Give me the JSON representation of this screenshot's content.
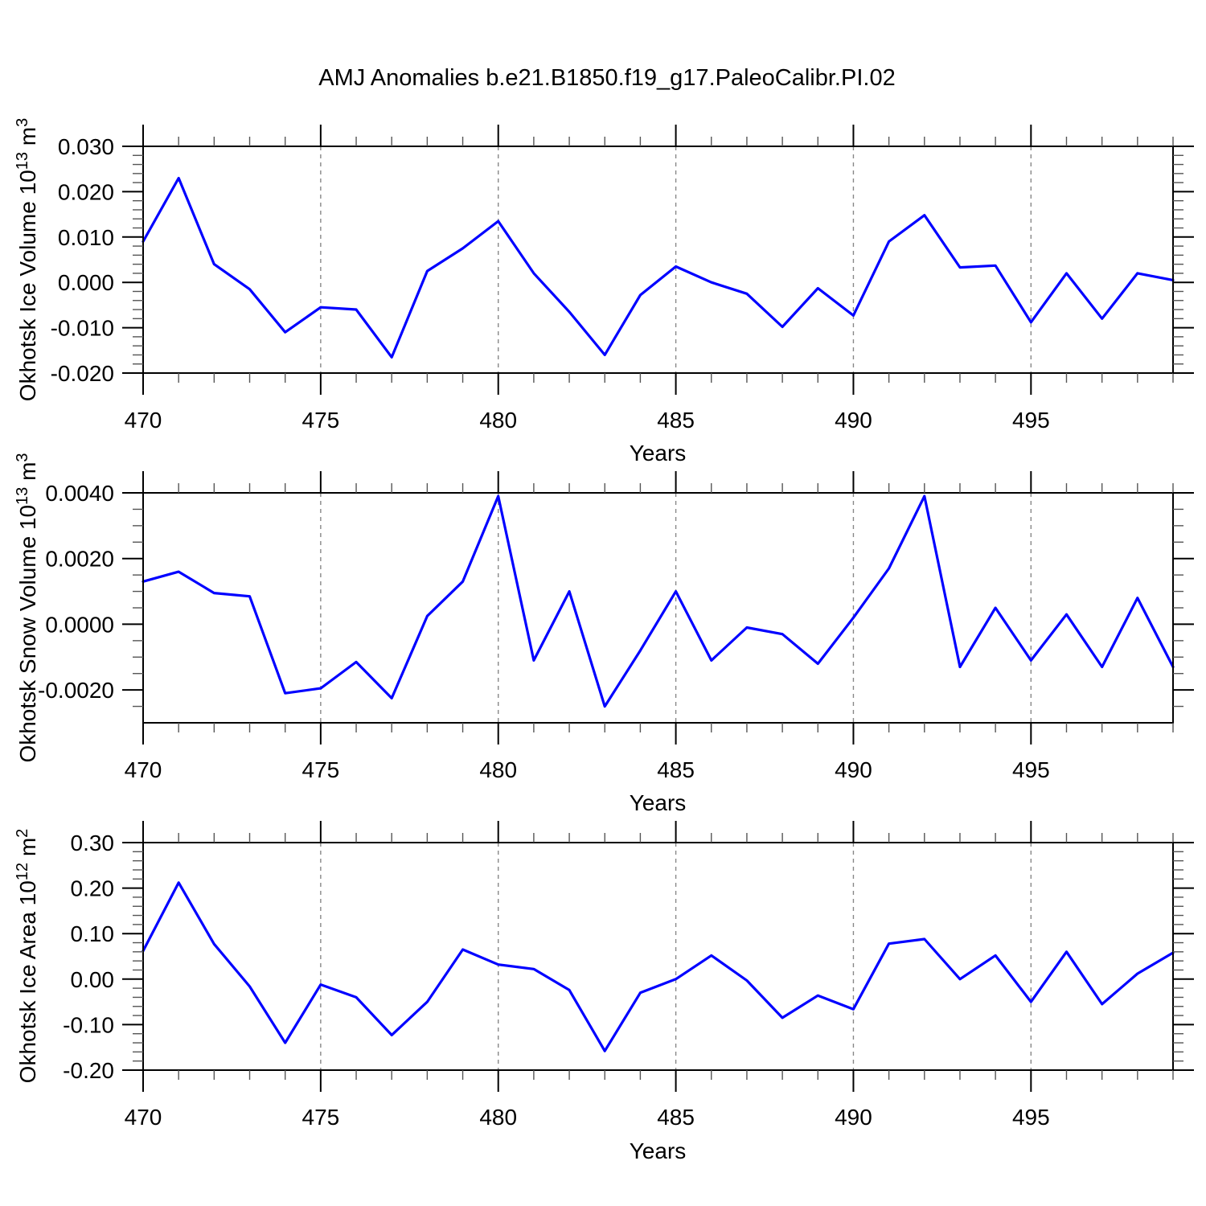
{
  "title": "AMJ Anomalies b.e21.B1850.f19_g17.PaleoCalibr.PI.02",
  "colors": {
    "line": "#0000ff",
    "grid": "#888888",
    "frame": "#000000",
    "minor_tick": "#555555"
  },
  "chart_data": [
    {
      "type": "line",
      "series_name": "Okhotsk Ice Volume anomaly",
      "xlabel": "Years",
      "ylabel": {
        "text": "Okhotsk Ice Volume 10",
        "sup1": "13",
        "unit": " m",
        "sup2": "3"
      },
      "x": [
        470,
        471,
        472,
        473,
        474,
        475,
        476,
        477,
        478,
        479,
        480,
        481,
        482,
        483,
        484,
        485,
        486,
        487,
        488,
        489,
        490,
        491,
        492,
        493,
        494,
        495,
        496,
        497,
        498,
        499
      ],
      "values": [
        0.009,
        0.023,
        0.004,
        -0.0015,
        -0.011,
        -0.0055,
        -0.006,
        -0.0165,
        0.0025,
        0.0075,
        0.0135,
        0.002,
        -0.0065,
        -0.016,
        -0.0028,
        0.0035,
        0.0,
        -0.0025,
        -0.0098,
        -0.0013,
        -0.0073,
        0.009,
        0.0148,
        0.0033,
        0.0037,
        -0.0088,
        0.002,
        -0.008,
        0.002,
        0.0005
      ],
      "xlim": [
        470,
        499
      ],
      "ylim": [
        -0.02,
        0.03
      ],
      "yticks": [
        {
          "v": 0.03,
          "label": "0.030"
        },
        {
          "v": 0.02,
          "label": "0.020"
        },
        {
          "v": 0.01,
          "label": "0.010"
        },
        {
          "v": 0.0,
          "label": "0.000"
        },
        {
          "v": -0.01,
          "label": "-0.010"
        },
        {
          "v": -0.02,
          "label": "-0.020"
        }
      ],
      "y_minor_step": 0.002,
      "xticks": [
        {
          "v": 470,
          "label": "470"
        },
        {
          "v": 475,
          "label": "475"
        },
        {
          "v": 480,
          "label": "480"
        },
        {
          "v": 485,
          "label": "485"
        },
        {
          "v": 490,
          "label": "490"
        },
        {
          "v": 495,
          "label": "495"
        }
      ],
      "x_minor_step": 1,
      "grid_x": [
        475,
        480,
        485,
        490,
        495
      ],
      "line_color": "#0000ff",
      "grid_on": true,
      "legend": "none"
    },
    {
      "type": "line",
      "series_name": "Okhotsk Snow Volume anomaly",
      "xlabel": "Years",
      "ylabel": {
        "text": "Okhotsk Snow Volume 10",
        "sup1": "13",
        "unit": " m",
        "sup2": "3"
      },
      "x": [
        470,
        471,
        472,
        473,
        474,
        475,
        476,
        477,
        478,
        479,
        480,
        481,
        482,
        483,
        484,
        485,
        486,
        487,
        488,
        489,
        490,
        491,
        492,
        493,
        494,
        495,
        496,
        497,
        498,
        499
      ],
      "values": [
        0.0013,
        0.0016,
        0.00095,
        0.00085,
        -0.0021,
        -0.00195,
        -0.00115,
        -0.00225,
        0.00025,
        0.0013,
        0.0039,
        -0.0011,
        0.001,
        -0.0025,
        -0.0008,
        0.001,
        -0.0011,
        -0.0001,
        -0.0003,
        -0.0012,
        0.0002,
        0.0017,
        0.0039,
        -0.0013,
        0.0005,
        -0.0011,
        0.0003,
        -0.0013,
        0.0008,
        -0.0013
      ],
      "xlim": [
        470,
        499
      ],
      "ylim": [
        -0.003,
        0.004
      ],
      "yticks": [
        {
          "v": 0.004,
          "label": "0.0040"
        },
        {
          "v": 0.002,
          "label": "0.0020"
        },
        {
          "v": 0.0,
          "label": "0.0000"
        },
        {
          "v": -0.002,
          "label": "-0.0020"
        }
      ],
      "y_minor_step": 0.0005,
      "xticks": [
        {
          "v": 470,
          "label": "470"
        },
        {
          "v": 475,
          "label": "475"
        },
        {
          "v": 480,
          "label": "480"
        },
        {
          "v": 485,
          "label": "485"
        },
        {
          "v": 490,
          "label": "490"
        },
        {
          "v": 495,
          "label": "495"
        }
      ],
      "x_minor_step": 1,
      "grid_x": [
        475,
        480,
        485,
        490,
        495
      ],
      "line_color": "#0000ff",
      "grid_on": true,
      "legend": "none"
    },
    {
      "type": "line",
      "series_name": "Okhotsk Ice Area anomaly",
      "xlabel": "Years",
      "ylabel": {
        "text": "Okhotsk Ice Area 10",
        "sup1": "12",
        "unit": " m",
        "sup2": "2"
      },
      "x": [
        470,
        471,
        472,
        473,
        474,
        475,
        476,
        477,
        478,
        479,
        480,
        481,
        482,
        483,
        484,
        485,
        486,
        487,
        488,
        489,
        490,
        491,
        492,
        493,
        494,
        495,
        496,
        497,
        498,
        499
      ],
      "values": [
        0.062,
        0.212,
        0.077,
        -0.016,
        -0.14,
        -0.012,
        -0.04,
        -0.123,
        -0.05,
        0.065,
        0.032,
        0.022,
        -0.024,
        -0.158,
        -0.03,
        0.0,
        0.052,
        -0.003,
        -0.085,
        -0.036,
        -0.066,
        0.078,
        0.088,
        0.0,
        0.052,
        -0.05,
        0.06,
        -0.055,
        0.012,
        0.058
      ],
      "xlim": [
        470,
        499
      ],
      "ylim": [
        -0.2,
        0.3
      ],
      "yticks": [
        {
          "v": 0.3,
          "label": "0.30"
        },
        {
          "v": 0.2,
          "label": "0.20"
        },
        {
          "v": 0.1,
          "label": "0.10"
        },
        {
          "v": 0.0,
          "label": "0.00"
        },
        {
          "v": -0.1,
          "label": "-0.10"
        },
        {
          "v": -0.2,
          "label": "-0.20"
        }
      ],
      "y_minor_step": 0.02,
      "xticks": [
        {
          "v": 470,
          "label": "470"
        },
        {
          "v": 475,
          "label": "475"
        },
        {
          "v": 480,
          "label": "480"
        },
        {
          "v": 485,
          "label": "485"
        },
        {
          "v": 490,
          "label": "490"
        },
        {
          "v": 495,
          "label": "495"
        }
      ],
      "x_minor_step": 1,
      "grid_x": [
        475,
        480,
        485,
        490,
        495
      ],
      "line_color": "#0000ff",
      "grid_on": true,
      "legend": "none"
    }
  ]
}
